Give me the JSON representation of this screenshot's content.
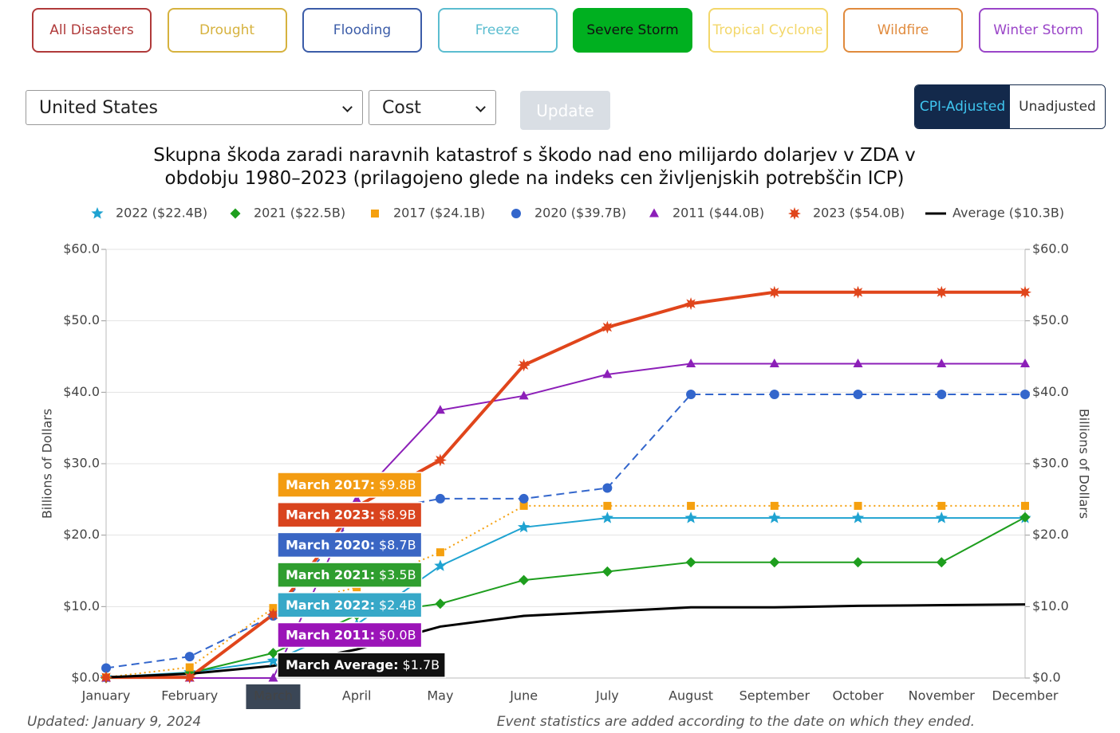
{
  "filters": [
    {
      "label": "All Disasters",
      "color": "#b03a3a"
    },
    {
      "label": "Drought",
      "color": "#d6b23e"
    },
    {
      "label": "Flooding",
      "color": "#3b5ca8"
    },
    {
      "label": "Freeze",
      "color": "#5bbdd0"
    },
    {
      "label": "Severe Storm",
      "color": "#00b020"
    },
    {
      "label": "Tropical Cyclone",
      "color": "#f3d76a"
    },
    {
      "label": "Wildfire",
      "color": "#e08a3c"
    },
    {
      "label": "Winter Storm",
      "color": "#9a45c8"
    }
  ],
  "active_filter": "Severe Storm",
  "selects": [
    "United States",
    "Cost"
  ],
  "update": "Update",
  "toggle": [
    "CPI-Adjusted",
    "Unadjusted"
  ],
  "chart_data": {
    "type": "line",
    "title": "Skupna škoda zaradi naravnih katastrof s škodo nad eno milijardo dolarjev v ZDA v obdobju 1980–2023 (prilagojeno glede na indeks cen življenjskih potrebščin ICP)",
    "y_label": "Billions of Dollars",
    "y2_label": "Billions of Dollars",
    "categories": [
      "January",
      "February",
      "March",
      "April",
      "May",
      "June",
      "July",
      "August",
      "September",
      "October",
      "November",
      "December"
    ],
    "highlight_category": "March",
    "ylim": [
      0,
      60
    ],
    "yticks": [
      {
        "value": 0,
        "label": "$0.0"
      },
      {
        "value": 10,
        "label": "$10.0"
      },
      {
        "value": 20,
        "label": "$20.0"
      },
      {
        "value": 30,
        "label": "$30.0"
      },
      {
        "value": 40,
        "label": "$40.0"
      },
      {
        "value": 50,
        "label": "$50.0"
      },
      {
        "value": 60,
        "label": "$60.0"
      }
    ],
    "y2lim": [
      0,
      60
    ],
    "y2ticks": [
      {
        "value": 0,
        "label": "$0.0"
      },
      {
        "value": 10,
        "label": "$10.0"
      },
      {
        "value": 20,
        "label": "$20.0"
      },
      {
        "value": 30,
        "label": "$30.0"
      },
      {
        "value": 40,
        "label": "$40.0"
      },
      {
        "value": 50,
        "label": "$50.0"
      },
      {
        "value": 60,
        "label": "$60.0"
      }
    ],
    "grid": true,
    "series": [
      {
        "name": "2022 ($22.4B)",
        "color": "#1fa3d1",
        "marker": "star",
        "dash": "solid",
        "values": [
          0.1,
          0.8,
          2.4,
          7.5,
          15.7,
          21.1,
          22.4,
          22.4,
          22.4,
          22.4,
          22.4,
          22.4
        ]
      },
      {
        "name": "2021 ($22.5B)",
        "color": "#1e9e1e",
        "marker": "diamond",
        "dash": "solid",
        "values": [
          0.0,
          0.7,
          3.5,
          8.8,
          10.4,
          13.7,
          14.9,
          16.2,
          16.2,
          16.2,
          16.2,
          22.5
        ]
      },
      {
        "name": "2017 ($24.1B)",
        "color": "#f5a00f",
        "marker": "square",
        "dash": "dotted",
        "values": [
          0.1,
          1.5,
          9.8,
          12.7,
          17.6,
          24.1,
          24.1,
          24.1,
          24.1,
          24.1,
          24.1,
          24.1
        ]
      },
      {
        "name": "2020 ($39.7B)",
        "color": "#3366cc",
        "marker": "circle",
        "dash": "dashed",
        "values": [
          1.4,
          3.0,
          8.7,
          23.0,
          25.1,
          25.1,
          26.6,
          39.7,
          39.7,
          39.7,
          39.7,
          39.7
        ]
      },
      {
        "name": "2011 ($44.0B)",
        "color": "#8c1fb8",
        "marker": "triangle",
        "dash": "solid",
        "values": [
          0.0,
          0.0,
          0.0,
          25.0,
          37.5,
          39.5,
          42.5,
          44.0,
          44.0,
          44.0,
          44.0,
          44.0
        ]
      },
      {
        "name": "2023 ($54.0B)",
        "color": "#e0451b",
        "marker": "burst",
        "dash": "solid",
        "width": 4,
        "values": [
          0.1,
          0.1,
          8.9,
          24.0,
          30.5,
          43.8,
          49.1,
          52.4,
          54.0,
          54.0,
          54.0,
          54.0
        ]
      },
      {
        "name": "Average ($10.3B)",
        "color": "#000000",
        "marker": "none",
        "dash": "solid",
        "width": 3,
        "values": [
          0.1,
          0.6,
          1.7,
          4.0,
          7.2,
          8.7,
          9.3,
          9.9,
          9.9,
          10.1,
          10.2,
          10.3
        ]
      }
    ],
    "tooltip": [
      {
        "label": "March 2017:",
        "value": "$9.8B",
        "color": "#f39c12"
      },
      {
        "label": "March 2023:",
        "value": "$8.9B",
        "color": "#d9441e"
      },
      {
        "label": "March 2020:",
        "value": "$8.7B",
        "color": "#3a66c4"
      },
      {
        "label": "March 2021:",
        "value": "$3.5B",
        "color": "#2f9e2f"
      },
      {
        "label": "March 2022:",
        "value": "$2.4B",
        "color": "#37a8c8"
      },
      {
        "label": "March 2011:",
        "value": "$0.0B",
        "color": "#9b14b8"
      },
      {
        "label": "March Average:",
        "value": "$1.7B",
        "color": "#111111"
      }
    ]
  },
  "footer": {
    "updated": "Updated: January 9, 2024",
    "note": "Event statistics are added according to the date on which they ended."
  }
}
